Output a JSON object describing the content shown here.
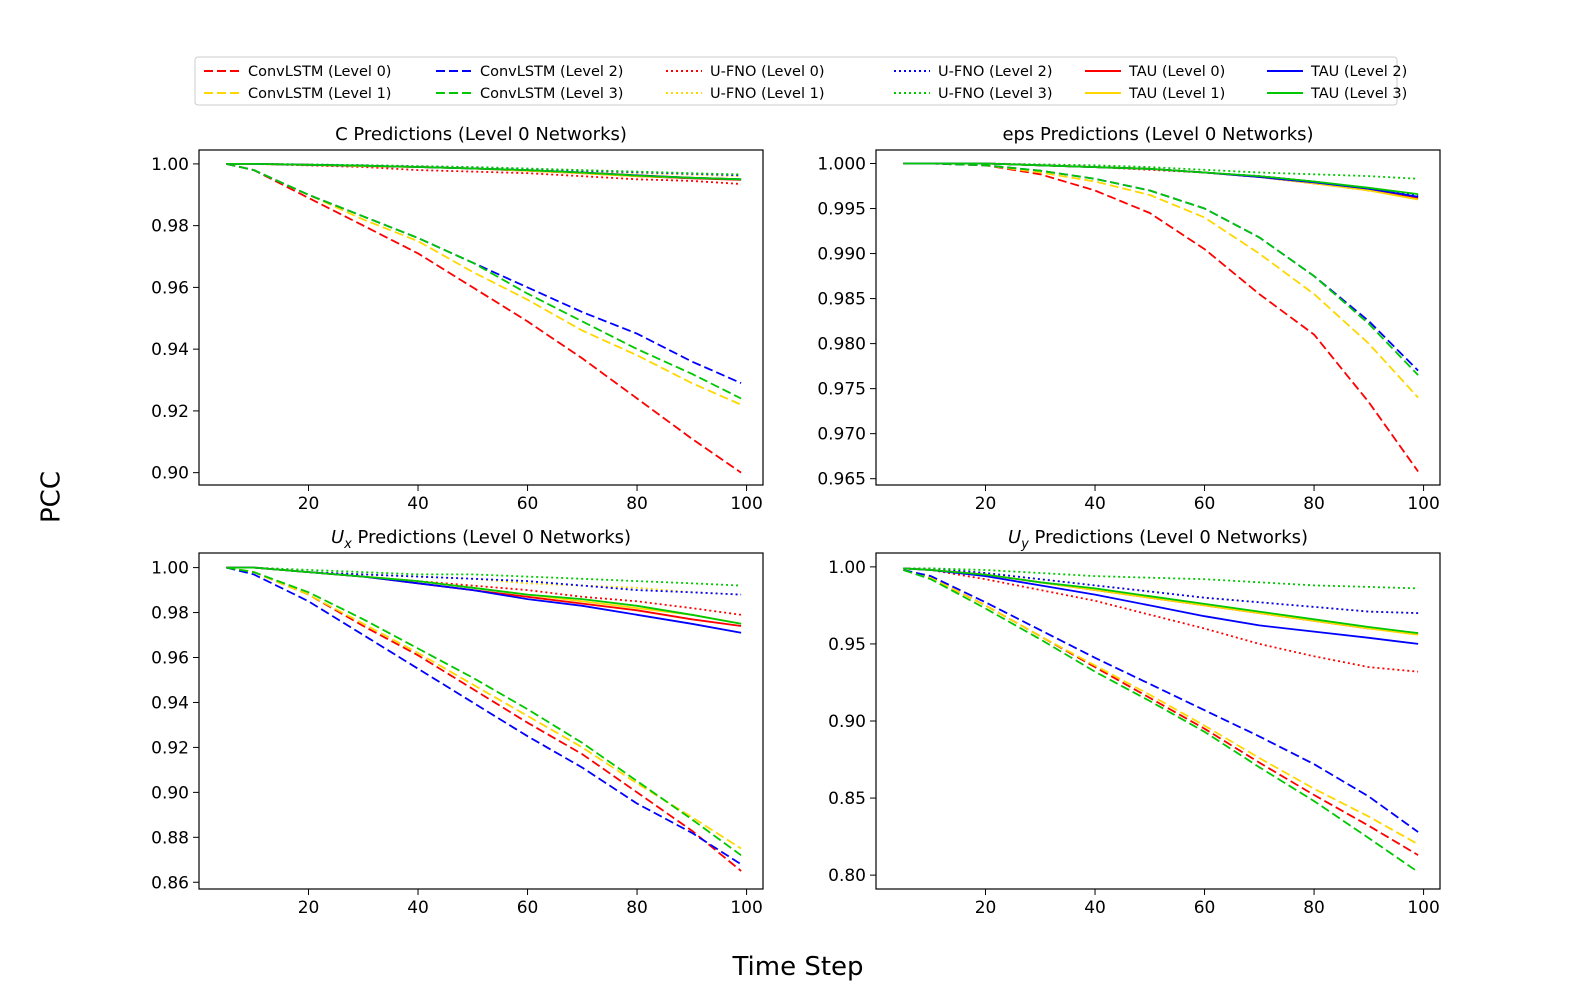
{
  "figure": {
    "ylabel": "PCC",
    "xlabel": "Time Step"
  },
  "colors": {
    "level0": "#ff0000",
    "level1": "#ffd700",
    "level2": "#0000ff",
    "level3": "#00c800"
  },
  "legend": {
    "entries": [
      {
        "label": "ConvLSTM (Level 0)",
        "model": "ConvLSTM",
        "level": 0,
        "style": "dashed"
      },
      {
        "label": "ConvLSTM (Level 1)",
        "model": "ConvLSTM",
        "level": 1,
        "style": "dashed"
      },
      {
        "label": "ConvLSTM (Level 2)",
        "model": "ConvLSTM",
        "level": 2,
        "style": "dashed"
      },
      {
        "label": "ConvLSTM (Level 3)",
        "model": "ConvLSTM",
        "level": 3,
        "style": "dashed"
      },
      {
        "label": "U-FNO (Level 0)",
        "model": "U-FNO",
        "level": 0,
        "style": "dotted"
      },
      {
        "label": "U-FNO (Level 1)",
        "model": "U-FNO",
        "level": 1,
        "style": "dotted"
      },
      {
        "label": "U-FNO (Level 2)",
        "model": "U-FNO",
        "level": 2,
        "style": "dotted"
      },
      {
        "label": "U-FNO (Level 3)",
        "model": "U-FNO",
        "level": 3,
        "style": "dotted"
      },
      {
        "label": "TAU (Level 0)",
        "model": "TAU",
        "level": 0,
        "style": "solid"
      },
      {
        "label": "TAU (Level 1)",
        "model": "TAU",
        "level": 1,
        "style": "solid"
      },
      {
        "label": "TAU (Level 2)",
        "model": "TAU",
        "level": 2,
        "style": "solid"
      },
      {
        "label": "TAU (Level 3)",
        "model": "TAU",
        "level": 3,
        "style": "solid"
      }
    ]
  },
  "chart_data": [
    {
      "type": "line",
      "title": "C Predictions (Level 0 Networks)",
      "xlabel": "",
      "ylabel": "",
      "xlim": [
        0,
        103
      ],
      "ylim": [
        0.896,
        1.0045
      ],
      "xticks": [
        20,
        40,
        60,
        80,
        100
      ],
      "yticks": [
        0.9,
        0.92,
        0.94,
        0.96,
        0.98,
        1.0
      ],
      "ytick_labels": [
        "0.90",
        "0.92",
        "0.94",
        "0.96",
        "0.98",
        "1.00"
      ],
      "x": [
        5,
        10,
        20,
        30,
        40,
        50,
        60,
        70,
        80,
        90,
        99
      ],
      "series": [
        {
          "name": "ConvLSTM (Level 0)",
          "values": [
            1.0,
            0.998,
            0.989,
            0.98,
            0.971,
            0.96,
            0.949,
            0.937,
            0.924,
            0.911,
            0.9
          ]
        },
        {
          "name": "ConvLSTM (Level 1)",
          "values": [
            1.0,
            0.998,
            0.99,
            0.982,
            0.975,
            0.965,
            0.956,
            0.946,
            0.938,
            0.929,
            0.922
          ]
        },
        {
          "name": "ConvLSTM (Level 2)",
          "values": [
            1.0,
            0.998,
            0.99,
            0.983,
            0.976,
            0.968,
            0.96,
            0.952,
            0.945,
            0.936,
            0.929
          ]
        },
        {
          "name": "ConvLSTM (Level 3)",
          "values": [
            1.0,
            0.998,
            0.99,
            0.983,
            0.976,
            0.968,
            0.958,
            0.949,
            0.94,
            0.932,
            0.924
          ]
        },
        {
          "name": "U-FNO (Level 0)",
          "values": [
            1.0,
            1.0,
            0.9995,
            0.999,
            0.998,
            0.9975,
            0.997,
            0.996,
            0.995,
            0.9945,
            0.9935
          ]
        },
        {
          "name": "U-FNO (Level 1)",
          "values": [
            1.0,
            1.0,
            0.9997,
            0.9995,
            0.999,
            0.9985,
            0.998,
            0.9975,
            0.997,
            0.9965,
            0.996
          ]
        },
        {
          "name": "U-FNO (Level 2)",
          "values": [
            1.0,
            1.0,
            0.9998,
            0.9995,
            0.9992,
            0.9988,
            0.9983,
            0.9978,
            0.9973,
            0.9968,
            0.9963
          ]
        },
        {
          "name": "U-FNO (Level 3)",
          "values": [
            1.0,
            1.0,
            0.9998,
            0.9996,
            0.9993,
            0.999,
            0.9985,
            0.998,
            0.9975,
            0.997,
            0.9966
          ]
        },
        {
          "name": "TAU (Level 0)",
          "values": [
            1.0,
            1.0,
            0.9997,
            0.9993,
            0.999,
            0.9985,
            0.9978,
            0.997,
            0.996,
            0.9953,
            0.9948
          ]
        },
        {
          "name": "TAU (Level 1)",
          "values": [
            1.0,
            1.0,
            0.9997,
            0.9993,
            0.999,
            0.9985,
            0.9978,
            0.997,
            0.996,
            0.9955,
            0.995
          ]
        },
        {
          "name": "TAU (Level 2)",
          "values": [
            1.0,
            1.0,
            0.9997,
            0.9994,
            0.999,
            0.9985,
            0.998,
            0.9972,
            0.9963,
            0.9955,
            0.995
          ]
        },
        {
          "name": "TAU (Level 3)",
          "values": [
            1.0,
            1.0,
            0.9997,
            0.9994,
            0.999,
            0.9985,
            0.998,
            0.9972,
            0.9962,
            0.9955,
            0.995
          ]
        }
      ]
    },
    {
      "type": "line",
      "title": "eps Predictions (Level 0 Networks)",
      "xlabel": "",
      "ylabel": "",
      "xlim": [
        0,
        103
      ],
      "ylim": [
        0.9643,
        1.0015
      ],
      "xticks": [
        20,
        40,
        60,
        80,
        100
      ],
      "yticks": [
        0.965,
        0.97,
        0.975,
        0.98,
        0.985,
        0.99,
        0.995,
        1.0
      ],
      "ytick_labels": [
        "0.965",
        "0.970",
        "0.975",
        "0.980",
        "0.985",
        "0.990",
        "0.995",
        "1.000"
      ],
      "x": [
        5,
        10,
        20,
        30,
        40,
        50,
        60,
        70,
        80,
        90,
        99
      ],
      "series": [
        {
          "name": "ConvLSTM (Level 0)",
          "values": [
            1.0,
            1.0,
            0.9998,
            0.9988,
            0.997,
            0.9945,
            0.9905,
            0.9855,
            0.981,
            0.9735,
            0.9658
          ]
        },
        {
          "name": "ConvLSTM (Level 1)",
          "values": [
            1.0,
            1.0,
            0.9998,
            0.999,
            0.998,
            0.9965,
            0.994,
            0.99,
            0.9855,
            0.98,
            0.974
          ]
        },
        {
          "name": "ConvLSTM (Level 2)",
          "values": [
            1.0,
            1.0,
            0.9998,
            0.9992,
            0.9983,
            0.997,
            0.995,
            0.9918,
            0.9875,
            0.9825,
            0.977
          ]
        },
        {
          "name": "ConvLSTM (Level 3)",
          "values": [
            1.0,
            1.0,
            0.9998,
            0.9992,
            0.9983,
            0.997,
            0.995,
            0.9918,
            0.9875,
            0.9822,
            0.9765
          ]
        },
        {
          "name": "U-FNO (Level 0)",
          "values": [
            1.0,
            1.0,
            1.0,
            0.9998,
            0.9996,
            0.9993,
            0.999,
            0.9985,
            0.9978,
            0.997,
            0.9962
          ]
        },
        {
          "name": "U-FNO (Level 1)",
          "values": [
            1.0,
            1.0,
            1.0,
            0.9998,
            0.9996,
            0.9994,
            0.999,
            0.9986,
            0.998,
            0.9972,
            0.9963
          ]
        },
        {
          "name": "U-FNO (Level 2)",
          "values": [
            1.0,
            1.0,
            1.0,
            0.9998,
            0.9996,
            0.9994,
            0.999,
            0.9986,
            0.998,
            0.9972,
            0.9965
          ]
        },
        {
          "name": "U-FNO (Level 3)",
          "values": [
            1.0,
            1.0,
            1.0,
            0.9999,
            0.9998,
            0.9996,
            0.9993,
            0.999,
            0.9988,
            0.9986,
            0.9983
          ]
        },
        {
          "name": "TAU (Level 0)",
          "values": [
            1.0,
            1.0,
            1.0,
            0.9998,
            0.9996,
            0.9994,
            0.999,
            0.9985,
            0.9978,
            0.9971,
            0.9962
          ]
        },
        {
          "name": "TAU (Level 1)",
          "values": [
            1.0,
            1.0,
            1.0,
            0.9998,
            0.9996,
            0.9994,
            0.999,
            0.9985,
            0.9978,
            0.997,
            0.996
          ]
        },
        {
          "name": "TAU (Level 2)",
          "values": [
            1.0,
            1.0,
            1.0,
            0.9998,
            0.9996,
            0.9994,
            0.999,
            0.9985,
            0.9979,
            0.9972,
            0.9963
          ]
        },
        {
          "name": "TAU (Level 3)",
          "values": [
            1.0,
            1.0,
            1.0,
            0.9998,
            0.9996,
            0.9994,
            0.999,
            0.9986,
            0.998,
            0.9973,
            0.9966
          ]
        }
      ]
    },
    {
      "type": "line",
      "title_prefix": "U",
      "title_subscript": "x",
      "title_suffix": " Predictions (Level 0 Networks)",
      "xlabel": "",
      "ylabel": "",
      "xlim": [
        0,
        103
      ],
      "ylim": [
        0.857,
        1.0065
      ],
      "xticks": [
        20,
        40,
        60,
        80,
        100
      ],
      "yticks": [
        0.86,
        0.88,
        0.9,
        0.92,
        0.94,
        0.96,
        0.98,
        1.0
      ],
      "ytick_labels": [
        "0.86",
        "0.88",
        "0.90",
        "0.92",
        "0.94",
        "0.96",
        "0.98",
        "1.00"
      ],
      "x": [
        5,
        10,
        20,
        30,
        40,
        50,
        60,
        70,
        80,
        90,
        99
      ],
      "series": [
        {
          "name": "ConvLSTM (Level 0)",
          "values": [
            1.0,
            0.998,
            0.988,
            0.974,
            0.961,
            0.946,
            0.931,
            0.917,
            0.9,
            0.883,
            0.865
          ]
        },
        {
          "name": "ConvLSTM (Level 1)",
          "values": [
            1.0,
            0.998,
            0.988,
            0.975,
            0.962,
            0.948,
            0.934,
            0.92,
            0.904,
            0.889,
            0.875
          ]
        },
        {
          "name": "ConvLSTM (Level 2)",
          "values": [
            1.0,
            0.997,
            0.985,
            0.97,
            0.955,
            0.94,
            0.925,
            0.911,
            0.895,
            0.882,
            0.868
          ]
        },
        {
          "name": "ConvLSTM (Level 3)",
          "values": [
            1.0,
            0.998,
            0.989,
            0.977,
            0.964,
            0.951,
            0.937,
            0.922,
            0.905,
            0.888,
            0.872
          ]
        },
        {
          "name": "U-FNO (Level 0)",
          "values": [
            1.0,
            1.0,
            0.998,
            0.996,
            0.994,
            0.992,
            0.99,
            0.987,
            0.985,
            0.982,
            0.979
          ]
        },
        {
          "name": "U-FNO (Level 1)",
          "values": [
            1.0,
            1.0,
            0.998,
            0.997,
            0.996,
            0.995,
            0.993,
            0.992,
            0.991,
            0.989,
            0.988
          ]
        },
        {
          "name": "U-FNO (Level 2)",
          "values": [
            1.0,
            1.0,
            0.998,
            0.997,
            0.996,
            0.995,
            0.994,
            0.992,
            0.99,
            0.989,
            0.988
          ]
        },
        {
          "name": "U-FNO (Level 3)",
          "values": [
            1.0,
            1.0,
            0.999,
            0.998,
            0.997,
            0.997,
            0.996,
            0.995,
            0.994,
            0.993,
            0.992
          ]
        },
        {
          "name": "TAU (Level 0)",
          "values": [
            1.0,
            1.0,
            0.998,
            0.996,
            0.993,
            0.99,
            0.987,
            0.984,
            0.981,
            0.977,
            0.974
          ]
        },
        {
          "name": "TAU (Level 1)",
          "values": [
            1.0,
            1.0,
            0.998,
            0.996,
            0.994,
            0.991,
            0.988,
            0.985,
            0.982,
            0.979,
            0.975
          ]
        },
        {
          "name": "TAU (Level 2)",
          "values": [
            1.0,
            1.0,
            0.998,
            0.996,
            0.993,
            0.99,
            0.986,
            0.983,
            0.979,
            0.975,
            0.971
          ]
        },
        {
          "name": "TAU (Level 3)",
          "values": [
            1.0,
            1.0,
            0.998,
            0.996,
            0.994,
            0.991,
            0.988,
            0.986,
            0.983,
            0.979,
            0.975
          ]
        }
      ]
    },
    {
      "type": "line",
      "title_prefix": "U",
      "title_subscript": "y",
      "title_suffix": " Predictions (Level 0 Networks)",
      "xlabel": "",
      "ylabel": "",
      "xlim": [
        0,
        103
      ],
      "ylim": [
        0.791,
        1.009
      ],
      "xticks": [
        20,
        40,
        60,
        80,
        100
      ],
      "yticks": [
        0.8,
        0.85,
        0.9,
        0.95,
        1.0
      ],
      "ytick_labels": [
        "0.80",
        "0.85",
        "0.90",
        "0.95",
        "1.00"
      ],
      "x": [
        5,
        10,
        20,
        30,
        40,
        50,
        60,
        70,
        80,
        90,
        99
      ],
      "series": [
        {
          "name": "ConvLSTM (Level 0)",
          "values": [
            0.998,
            0.993,
            0.975,
            0.955,
            0.935,
            0.915,
            0.895,
            0.873,
            0.852,
            0.832,
            0.813
          ]
        },
        {
          "name": "ConvLSTM (Level 1)",
          "values": [
            0.998,
            0.993,
            0.975,
            0.955,
            0.936,
            0.917,
            0.897,
            0.876,
            0.856,
            0.838,
            0.82
          ]
        },
        {
          "name": "ConvLSTM (Level 2)",
          "values": [
            0.998,
            0.994,
            0.977,
            0.959,
            0.941,
            0.924,
            0.907,
            0.89,
            0.872,
            0.851,
            0.828
          ]
        },
        {
          "name": "ConvLSTM (Level 3)",
          "values": [
            0.998,
            0.992,
            0.973,
            0.953,
            0.932,
            0.913,
            0.893,
            0.87,
            0.848,
            0.824,
            0.802
          ]
        },
        {
          "name": "U-FNO (Level 0)",
          "values": [
            0.999,
            0.998,
            0.992,
            0.985,
            0.978,
            0.969,
            0.96,
            0.95,
            0.942,
            0.935,
            0.932
          ]
        },
        {
          "name": "U-FNO (Level 1)",
          "values": [
            0.999,
            0.999,
            0.996,
            0.992,
            0.988,
            0.984,
            0.98,
            0.977,
            0.974,
            0.971,
            0.97
          ]
        },
        {
          "name": "U-FNO (Level 2)",
          "values": [
            0.999,
            0.999,
            0.996,
            0.992,
            0.988,
            0.984,
            0.98,
            0.977,
            0.974,
            0.971,
            0.97
          ]
        },
        {
          "name": "U-FNO (Level 3)",
          "values": [
            0.999,
            0.999,
            0.998,
            0.996,
            0.994,
            0.993,
            0.992,
            0.99,
            0.988,
            0.987,
            0.986
          ]
        },
        {
          "name": "TAU (Level 0)",
          "values": [
            0.999,
            0.998,
            0.995,
            0.99,
            0.985,
            0.98,
            0.975,
            0.97,
            0.965,
            0.96,
            0.957
          ]
        },
        {
          "name": "TAU (Level 1)",
          "values": [
            0.999,
            0.998,
            0.995,
            0.99,
            0.985,
            0.98,
            0.975,
            0.97,
            0.965,
            0.96,
            0.956
          ]
        },
        {
          "name": "TAU (Level 2)",
          "values": [
            0.999,
            0.998,
            0.994,
            0.988,
            0.982,
            0.975,
            0.968,
            0.962,
            0.958,
            0.954,
            0.95
          ]
        },
        {
          "name": "TAU (Level 3)",
          "values": [
            0.999,
            0.998,
            0.995,
            0.99,
            0.986,
            0.981,
            0.976,
            0.971,
            0.966,
            0.961,
            0.957
          ]
        }
      ]
    }
  ]
}
